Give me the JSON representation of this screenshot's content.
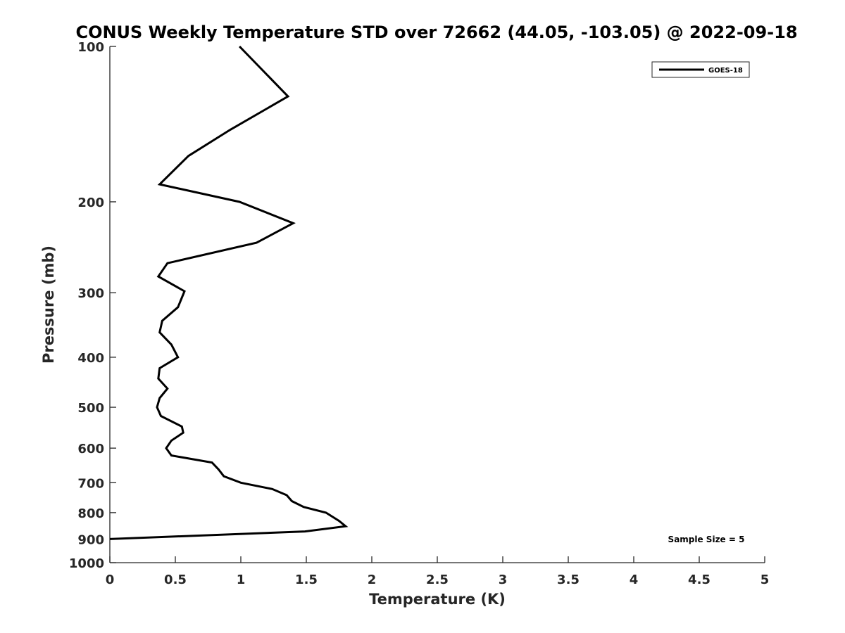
{
  "chart_data": {
    "type": "line",
    "title": "CONUS Weekly Temperature STD over 72662 (44.05, -103.05) @ 2022-09-18",
    "xlabel": "Temperature (K)",
    "ylabel": "Pressure (mb)",
    "xlim": [
      0,
      5
    ],
    "ylim": [
      100,
      1000
    ],
    "yscale": "log",
    "y_reversed": true,
    "grid": false,
    "legend_position": "top-right",
    "x_ticks": [
      "0",
      "0.5",
      "1",
      "1.5",
      "2",
      "2.5",
      "3",
      "3.5",
      "4",
      "4.5",
      "5"
    ],
    "y_ticks": [
      "100",
      "200",
      "300",
      "400",
      "500",
      "600",
      "700",
      "800",
      "900",
      "1000"
    ],
    "annotation": "Sample Size = 5",
    "series": [
      {
        "name": "GOES-18",
        "color": "#000000",
        "points": [
          {
            "x": 0.99,
            "p": 100
          },
          {
            "x": 1.36,
            "p": 125
          },
          {
            "x": 0.92,
            "p": 145
          },
          {
            "x": 0.6,
            "p": 163
          },
          {
            "x": 0.38,
            "p": 185
          },
          {
            "x": 0.99,
            "p": 200
          },
          {
            "x": 1.4,
            "p": 220
          },
          {
            "x": 1.12,
            "p": 240
          },
          {
            "x": 0.44,
            "p": 263
          },
          {
            "x": 0.37,
            "p": 279
          },
          {
            "x": 0.57,
            "p": 298
          },
          {
            "x": 0.52,
            "p": 320
          },
          {
            "x": 0.4,
            "p": 340
          },
          {
            "x": 0.38,
            "p": 358
          },
          {
            "x": 0.47,
            "p": 378
          },
          {
            "x": 0.52,
            "p": 400
          },
          {
            "x": 0.38,
            "p": 420
          },
          {
            "x": 0.37,
            "p": 440
          },
          {
            "x": 0.44,
            "p": 460
          },
          {
            "x": 0.38,
            "p": 480
          },
          {
            "x": 0.36,
            "p": 500
          },
          {
            "x": 0.39,
            "p": 520
          },
          {
            "x": 0.55,
            "p": 545
          },
          {
            "x": 0.56,
            "p": 560
          },
          {
            "x": 0.47,
            "p": 580
          },
          {
            "x": 0.43,
            "p": 600
          },
          {
            "x": 0.47,
            "p": 620
          },
          {
            "x": 0.78,
            "p": 640
          },
          {
            "x": 0.83,
            "p": 660
          },
          {
            "x": 0.87,
            "p": 680
          },
          {
            "x": 1.0,
            "p": 700
          },
          {
            "x": 1.24,
            "p": 720
          },
          {
            "x": 1.35,
            "p": 740
          },
          {
            "x": 1.39,
            "p": 760
          },
          {
            "x": 1.48,
            "p": 780
          },
          {
            "x": 1.65,
            "p": 800
          },
          {
            "x": 1.75,
            "p": 830
          },
          {
            "x": 1.8,
            "p": 850
          },
          {
            "x": 1.49,
            "p": 870
          },
          {
            "x": 0.0,
            "p": 900
          }
        ]
      }
    ]
  }
}
